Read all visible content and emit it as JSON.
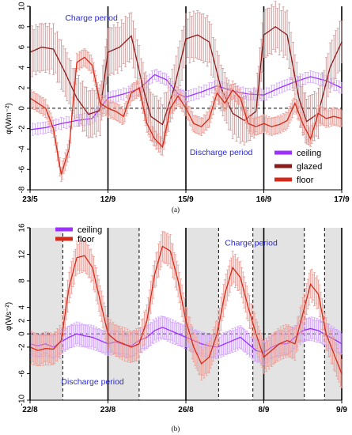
{
  "chart_data": [
    {
      "type": "line",
      "panel_label": "(a)",
      "ylabel": "φ(Wm⁻²)",
      "ylim": [
        -8,
        10
      ],
      "yticks": [
        -8,
        -6,
        -4,
        -2,
        0,
        2,
        4,
        6,
        8,
        10
      ],
      "x_tick_labels": [
        "23/5",
        "12/9",
        "15/9",
        "16/9",
        "17/9"
      ],
      "x_tick_positions": [
        0,
        1,
        2,
        3,
        4
      ],
      "xlim": [
        0,
        4
      ],
      "zero_line": true,
      "solid_vlines": [
        0,
        1,
        2,
        3,
        4
      ],
      "annotations": [
        {
          "text": "Charge period",
          "x": 0.45,
          "y": 8.6
        },
        {
          "text": "Discharge period",
          "x": 2.05,
          "y": -4.6
        }
      ],
      "legend_position": "bottom-right",
      "series": [
        {
          "name": "ceiling",
          "color": "#9b30ff",
          "err": 0.6,
          "x": [
            0,
            0.2,
            0.4,
            0.6,
            0.8,
            1.0,
            1.2,
            1.4,
            1.6,
            1.75,
            1.9,
            2.0,
            2.2,
            2.4,
            2.6,
            2.8,
            3.0,
            3.2,
            3.4,
            3.6,
            3.8,
            4.0
          ],
          "y": [
            -2.1,
            -1.9,
            -1.5,
            -1.2,
            -1.0,
            1.0,
            1.4,
            1.9,
            3.3,
            2.8,
            1.4,
            1.1,
            1.6,
            2.2,
            1.7,
            1.4,
            1.3,
            2.0,
            2.6,
            3.1,
            2.7,
            2.0
          ]
        },
        {
          "name": "glazed",
          "color": "#8b1a1a",
          "err": 2.5,
          "x": [
            0,
            0.15,
            0.3,
            0.45,
            0.6,
            0.75,
            0.9,
            1.0,
            1.15,
            1.3,
            1.45,
            1.55,
            1.7,
            1.85,
            2.0,
            2.15,
            2.3,
            2.45,
            2.6,
            2.75,
            2.9,
            3.0,
            3.15,
            3.3,
            3.45,
            3.55,
            3.7,
            3.85,
            4.0
          ],
          "y": [
            5.5,
            6.0,
            5.8,
            3.5,
            1.0,
            -0.6,
            -0.2,
            5.5,
            6.0,
            7.1,
            2.0,
            -0.8,
            -1.6,
            2.0,
            6.8,
            7.2,
            6.5,
            2.0,
            -0.5,
            -1.2,
            -0.3,
            7.2,
            8.0,
            7.2,
            1.0,
            -1.3,
            -0.5,
            4.0,
            6.5
          ]
        },
        {
          "name": "floor",
          "color": "#d42a1a",
          "err": 0.9,
          "x": [
            0,
            0.1,
            0.2,
            0.3,
            0.4,
            0.5,
            0.6,
            0.7,
            0.8,
            0.9,
            1.0,
            1.1,
            1.2,
            1.3,
            1.4,
            1.5,
            1.6,
            1.7,
            1.8,
            1.9,
            2.0,
            2.1,
            2.2,
            2.3,
            2.4,
            2.5,
            2.6,
            2.7,
            2.8,
            2.9,
            3.0,
            3.1,
            3.2,
            3.3,
            3.4,
            3.5,
            3.6,
            3.7,
            3.8,
            3.9,
            4.0
          ],
          "y": [
            1.0,
            0.5,
            0.0,
            -2.0,
            -6.5,
            -4.0,
            4.5,
            5.0,
            4.2,
            0.5,
            0.0,
            -0.3,
            -0.8,
            1.5,
            2.0,
            -1.5,
            -3.0,
            -3.8,
            0.0,
            1.2,
            0.0,
            -1.5,
            -1.8,
            -1.0,
            1.5,
            0.5,
            1.8,
            1.0,
            -1.5,
            -1.8,
            -1.5,
            -1.8,
            -1.6,
            -1.2,
            0.5,
            -1.5,
            -3.0,
            -0.5,
            -1.0,
            -0.8,
            -1.0
          ]
        }
      ]
    },
    {
      "type": "line",
      "panel_label": "(b)",
      "ylabel": "φ(Ws⁻²)",
      "ylim": [
        -10,
        16
      ],
      "yticks": [
        -10,
        -6,
        -2,
        0,
        2,
        4,
        8,
        12,
        16
      ],
      "x_tick_labels": [
        "22/8",
        "23/8",
        "26/8",
        "8/9",
        "9/9"
      ],
      "x_tick_positions": [
        0,
        1,
        2,
        3,
        4
      ],
      "xlim": [
        0,
        4
      ],
      "zero_line": true,
      "solid_vlines": [
        0,
        1,
        2,
        3,
        4
      ],
      "dashed_vlines": [
        0.42,
        1.4,
        2.42,
        2.86,
        3.52,
        3.78
      ],
      "shaded_regions": [
        [
          0,
          0.42
        ],
        [
          1.0,
          1.4
        ],
        [
          2.0,
          2.42
        ],
        [
          2.86,
          3.0
        ],
        [
          3.0,
          3.52
        ],
        [
          3.78,
          4.0
        ]
      ],
      "annotations": [
        {
          "text": "Charge period",
          "x": 2.5,
          "y": 13.3
        },
        {
          "text": "Discharge period",
          "x": 0.4,
          "y": -7.6
        }
      ],
      "legend_position": "top-left",
      "series": [
        {
          "name": "ceiling",
          "color": "#9b30ff",
          "err": 1.8,
          "x": [
            0,
            0.1,
            0.2,
            0.3,
            0.4,
            0.5,
            0.6,
            0.7,
            0.8,
            0.9,
            1.0,
            1.1,
            1.2,
            1.3,
            1.4,
            1.5,
            1.6,
            1.7,
            1.8,
            1.9,
            2.0,
            2.1,
            2.2,
            2.3,
            2.4,
            2.5,
            2.6,
            2.7,
            2.8,
            2.9,
            3.0,
            3.1,
            3.2,
            3.3,
            3.4,
            3.5,
            3.6,
            3.7,
            3.8,
            3.9,
            4.0
          ],
          "y": [
            -1.5,
            -1.8,
            -1.5,
            -2.0,
            -1.2,
            -0.5,
            0.0,
            -0.3,
            -0.5,
            -1.0,
            -1.5,
            -1.2,
            -1.6,
            -1.8,
            -1.0,
            -0.5,
            0.5,
            1.0,
            0.5,
            0.0,
            -0.5,
            -1.0,
            -1.5,
            -1.8,
            -2.0,
            -1.5,
            -1.0,
            -0.5,
            -1.5,
            -2.5,
            -2.8,
            -2.0,
            -1.5,
            -1.5,
            -0.5,
            0.5,
            0.8,
            0.5,
            -0.2,
            -0.8,
            -1.5
          ]
        },
        {
          "name": "floor",
          "color": "#d42a1a",
          "err": 2.5,
          "x": [
            0,
            0.1,
            0.2,
            0.3,
            0.4,
            0.5,
            0.6,
            0.7,
            0.8,
            0.9,
            1.0,
            1.1,
            1.2,
            1.3,
            1.4,
            1.5,
            1.6,
            1.7,
            1.8,
            1.9,
            2.0,
            2.1,
            2.2,
            2.3,
            2.4,
            2.5,
            2.6,
            2.7,
            2.8,
            2.9,
            3.0,
            3.1,
            3.2,
            3.3,
            3.4,
            3.5,
            3.6,
            3.7,
            3.8,
            3.9,
            4.0
          ],
          "y": [
            -2.0,
            -2.5,
            -2.2,
            -2.3,
            -1.0,
            7.0,
            11.5,
            11.8,
            10.0,
            5.0,
            0.0,
            -1.0,
            -1.5,
            -2.0,
            -1.5,
            2.0,
            9.0,
            13.2,
            12.5,
            8.0,
            2.0,
            -2.0,
            -4.5,
            -3.5,
            0.0,
            6.0,
            10.0,
            8.5,
            4.0,
            0.0,
            -3.5,
            -2.5,
            -1.5,
            -1.0,
            -1.5,
            3.0,
            7.5,
            6.0,
            0.0,
            -3.0,
            -6.0
          ]
        }
      ]
    }
  ]
}
